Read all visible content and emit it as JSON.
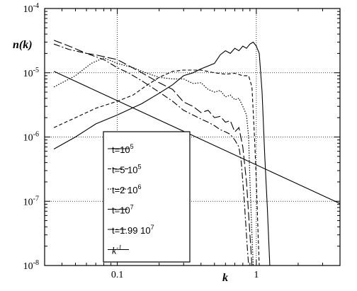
{
  "chart_data": {
    "type": "line",
    "xlabel": "k",
    "ylabel": "n(k)",
    "x_scale": "log",
    "y_scale": "log",
    "xlim": [
      0.03,
      4
    ],
    "ylim": [
      1e-08,
      0.0001
    ],
    "x_ticks": [
      {
        "value": 0.1,
        "label": "0.1"
      },
      {
        "value": 1,
        "label": "1"
      }
    ],
    "y_ticks": [
      {
        "value": 1e-08,
        "base": "10",
        "exp": "-8"
      },
      {
        "value": 1e-07,
        "base": "10",
        "exp": "-7"
      },
      {
        "value": 1e-06,
        "base": "10",
        "exp": "-6"
      },
      {
        "value": 1e-05,
        "base": "10",
        "exp": "-5"
      },
      {
        "value": 0.0001,
        "base": "10",
        "exp": "-4"
      }
    ],
    "grid": "dotted at 0.1, 1, 1e-7, 1e-6, 1e-5",
    "legend_position": "lower-left",
    "series": [
      {
        "name": "t=10^5",
        "legend": {
          "base": "t=10",
          "exp": "5"
        },
        "dash": "",
        "width": 1.1,
        "points": [
          [
            0.035,
            6.5e-07
          ],
          [
            0.05,
            1e-06
          ],
          [
            0.07,
            1.6e-06
          ],
          [
            0.1,
            2.2e-06
          ],
          [
            0.15,
            3.3e-06
          ],
          [
            0.2,
            4.8e-06
          ],
          [
            0.25,
            6.5e-06
          ],
          [
            0.3,
            9e-06
          ],
          [
            0.35,
            1e-05
          ],
          [
            0.4,
            1.15e-05
          ],
          [
            0.5,
            1.4e-05
          ],
          [
            0.55,
            1.9e-05
          ],
          [
            0.6,
            2.2e-05
          ],
          [
            0.65,
            2e-05
          ],
          [
            0.7,
            2.4e-05
          ],
          [
            0.75,
            2.2e-05
          ],
          [
            0.8,
            2.6e-05
          ],
          [
            0.85,
            2.4e-05
          ],
          [
            0.9,
            2.8e-05
          ],
          [
            0.95,
            3e-05
          ],
          [
            1.0,
            2.6e-05
          ],
          [
            1.05,
            2e-05
          ],
          [
            1.1,
            5e-06
          ],
          [
            1.15,
            5e-07
          ],
          [
            1.2,
            8e-08
          ],
          [
            1.25,
            1e-08
          ]
        ]
      },
      {
        "name": "t=5 10^5",
        "legend": {
          "base": "t=5 10",
          "exp": "5"
        },
        "dash": "5,3",
        "width": 1.1,
        "points": [
          [
            0.035,
            1.4e-06
          ],
          [
            0.05,
            2e-06
          ],
          [
            0.07,
            2.8e-06
          ],
          [
            0.1,
            3.6e-06
          ],
          [
            0.13,
            4.5e-06
          ],
          [
            0.16,
            6.2e-06
          ],
          [
            0.2,
            8.5e-06
          ],
          [
            0.25,
            1.05e-05
          ],
          [
            0.3,
            1.1e-05
          ],
          [
            0.4,
            1.1e-05
          ],
          [
            0.5,
            1e-05
          ],
          [
            0.6,
            9.5e-06
          ],
          [
            0.7,
            9.8e-06
          ],
          [
            0.8,
            9e-06
          ],
          [
            0.88,
            9e-06
          ],
          [
            0.93,
            6e-06
          ],
          [
            0.97,
            1e-06
          ],
          [
            1.0,
            2e-07
          ],
          [
            1.03,
            3e-08
          ],
          [
            1.05,
            1e-08
          ]
        ]
      },
      {
        "name": "t=2 10^6",
        "legend": {
          "base": "t=2 10",
          "exp": "6"
        },
        "dash": "1.5,2",
        "width": 1.2,
        "points": [
          [
            0.035,
            6e-06
          ],
          [
            0.05,
            9e-06
          ],
          [
            0.065,
            1.4e-05
          ],
          [
            0.08,
            1.7e-05
          ],
          [
            0.1,
            1.4e-05
          ],
          [
            0.13,
            1.2e-05
          ],
          [
            0.16,
            1e-05
          ],
          [
            0.2,
            8.5e-06
          ],
          [
            0.25,
            8e-06
          ],
          [
            0.3,
            8e-06
          ],
          [
            0.35,
            6.8e-06
          ],
          [
            0.4,
            7e-06
          ],
          [
            0.45,
            5.5e-06
          ],
          [
            0.5,
            5e-06
          ],
          [
            0.55,
            5.3e-06
          ],
          [
            0.6,
            4.2e-06
          ],
          [
            0.65,
            4.5e-06
          ],
          [
            0.7,
            3.8e-06
          ],
          [
            0.75,
            4e-06
          ],
          [
            0.8,
            3e-06
          ],
          [
            0.85,
            2.2e-06
          ],
          [
            0.88,
            1e-06
          ],
          [
            0.9,
            2e-07
          ],
          [
            0.93,
            3e-08
          ],
          [
            0.95,
            1e-08
          ]
        ]
      },
      {
        "name": "t=10^7",
        "legend": {
          "base": "t=10",
          "exp": "7"
        },
        "dash": "12,4",
        "width": 1.1,
        "points": [
          [
            0.035,
            3.2e-05
          ],
          [
            0.045,
            2.6e-05
          ],
          [
            0.06,
            2e-05
          ],
          [
            0.07,
            1.9e-05
          ],
          [
            0.1,
            1.6e-05
          ],
          [
            0.12,
            1.3e-05
          ],
          [
            0.15,
            1e-05
          ],
          [
            0.2,
            7e-06
          ],
          [
            0.25,
            5.5e-06
          ],
          [
            0.3,
            3.5e-06
          ],
          [
            0.35,
            3e-06
          ],
          [
            0.4,
            2.4e-06
          ],
          [
            0.45,
            2.6e-06
          ],
          [
            0.5,
            2e-06
          ],
          [
            0.55,
            2.1e-06
          ],
          [
            0.6,
            1.7e-06
          ],
          [
            0.65,
            1.8e-06
          ],
          [
            0.7,
            1.2e-06
          ],
          [
            0.75,
            1.4e-06
          ],
          [
            0.8,
            7e-07
          ],
          [
            0.85,
            2e-07
          ],
          [
            0.9,
            3e-08
          ],
          [
            0.93,
            1e-08
          ]
        ]
      },
      {
        "name": "t=1.99 10^7",
        "legend": {
          "base": "t=1.99 10",
          "exp": "7"
        },
        "dash": "9,3,2,3",
        "width": 1.1,
        "points": [
          [
            0.035,
            2.8e-05
          ],
          [
            0.045,
            2.3e-05
          ],
          [
            0.06,
            2e-05
          ],
          [
            0.08,
            1.6e-05
          ],
          [
            0.1,
            1.2e-05
          ],
          [
            0.12,
            1e-05
          ],
          [
            0.15,
            7.5e-06
          ],
          [
            0.2,
            5e-06
          ],
          [
            0.25,
            3.6e-06
          ],
          [
            0.3,
            2.6e-06
          ],
          [
            0.35,
            2.2e-06
          ],
          [
            0.4,
            1.9e-06
          ],
          [
            0.45,
            1.7e-06
          ],
          [
            0.5,
            1.5e-06
          ],
          [
            0.55,
            1.3e-06
          ],
          [
            0.6,
            1.2e-06
          ],
          [
            0.65,
            1.1e-06
          ],
          [
            0.7,
            9e-07
          ],
          [
            0.75,
            7e-07
          ],
          [
            0.78,
            4e-07
          ],
          [
            0.82,
            1e-07
          ],
          [
            0.86,
            2e-08
          ],
          [
            0.88,
            1e-08
          ]
        ]
      },
      {
        "name": "k^-1",
        "legend": {
          "base": "k",
          "exp": "-1"
        },
        "dash": "",
        "width": 1.1,
        "points": [
          [
            0.035,
            1.05e-05
          ],
          [
            4.0,
            9.2e-08
          ]
        ]
      }
    ]
  }
}
